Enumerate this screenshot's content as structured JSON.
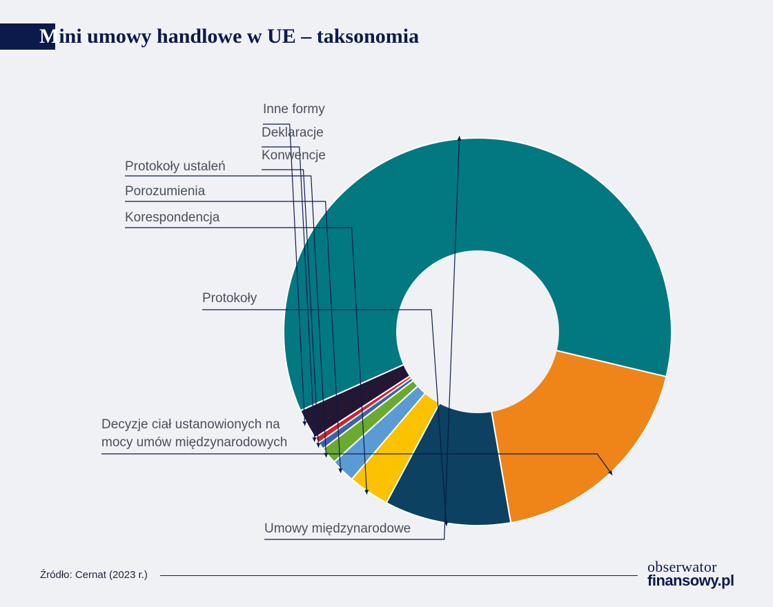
{
  "header": {
    "title_first": "M",
    "title_rest": "ini umowy handlowe w UE – taksonomia"
  },
  "chart_data": {
    "type": "pie",
    "donut": true,
    "title": "Mini umowy handlowe w UE – taksonomia",
    "slices": [
      {
        "label": "Umowy międzynarodowe",
        "value": 59.6,
        "color": "#027880"
      },
      {
        "label": "Decyzje ciał ustanowionych na mocy umów międzynarodowych",
        "value": 18.3,
        "color": "#ef8419"
      },
      {
        "label": "Protokoły",
        "value": 10.4,
        "color": "#0c4161"
      },
      {
        "label": "Korespondencja",
        "value": 3.4,
        "color": "#fbc200"
      },
      {
        "label": "Porozumienia",
        "value": 2.0,
        "color": "#5b9bd5"
      },
      {
        "label": "Protokoły ustaleń",
        "value": 1.4,
        "color": "#6aaa2f"
      },
      {
        "label": "Konwencje",
        "value": 0.6,
        "color": "#3b63ab"
      },
      {
        "label": "Deklaracje",
        "value": 0.5,
        "color": "#d6202a"
      },
      {
        "label": "Inne formy",
        "value": 2.5,
        "color": "#231734"
      }
    ],
    "label_lines": [
      [
        "Inne formy"
      ],
      [
        "Deklaracje"
      ],
      [
        "Konwencje"
      ],
      [
        "Protokoły ustaleń"
      ],
      [
        "Porozumienia"
      ],
      [
        "Korespondencja"
      ],
      [
        "Protokoły"
      ],
      [
        "Decyzje ciał ustanowionych na",
        "mocy umów międzynarodowych"
      ],
      [
        "Umowy międzynarodowe"
      ]
    ],
    "legend": "none",
    "center_color": "#f0f1f5"
  },
  "footer": {
    "source": "Źródło: Cernat (2023 r.)",
    "logo_line1": "obserwator",
    "logo_line2": "finansowy.pl"
  }
}
